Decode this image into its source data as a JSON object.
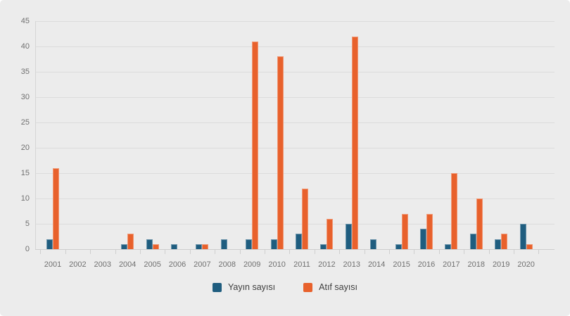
{
  "chart": {
    "background_color": "#ececec",
    "gridline_color": "#dcdcdc",
    "axis_color": "#cdcdcd",
    "tick_label_color": "#6f6f6f",
    "legend_text_color": "#3d3d3d"
  },
  "chart_data": {
    "type": "bar",
    "title": "",
    "xlabel": "",
    "ylabel": "",
    "grid": true,
    "legend_position": "bottom",
    "ylim": [
      0,
      45
    ],
    "yticks": [
      0,
      5,
      10,
      15,
      20,
      25,
      30,
      35,
      40,
      45
    ],
    "categories": [
      "2001",
      "2002",
      "2003",
      "2004",
      "2005",
      "2006",
      "2007",
      "2008",
      "2009",
      "2010",
      "2011",
      "2012",
      "2013",
      "2014",
      "2015",
      "2016",
      "2017",
      "2018",
      "2019",
      "2020"
    ],
    "series": [
      {
        "name": "Yayın sayısı",
        "color": "#1f5d7f",
        "values": [
          2,
          0,
          0,
          1,
          2,
          1,
          1,
          2,
          2,
          2,
          3,
          1,
          5,
          2,
          1,
          4,
          1,
          3,
          2,
          5
        ]
      },
      {
        "name": "Atıf sayısı",
        "color": "#e8612c",
        "values": [
          16,
          0,
          0,
          3,
          1,
          0,
          1,
          0,
          41,
          38,
          12,
          6,
          42,
          0,
          7,
          7,
          15,
          10,
          3,
          1
        ]
      }
    ]
  }
}
